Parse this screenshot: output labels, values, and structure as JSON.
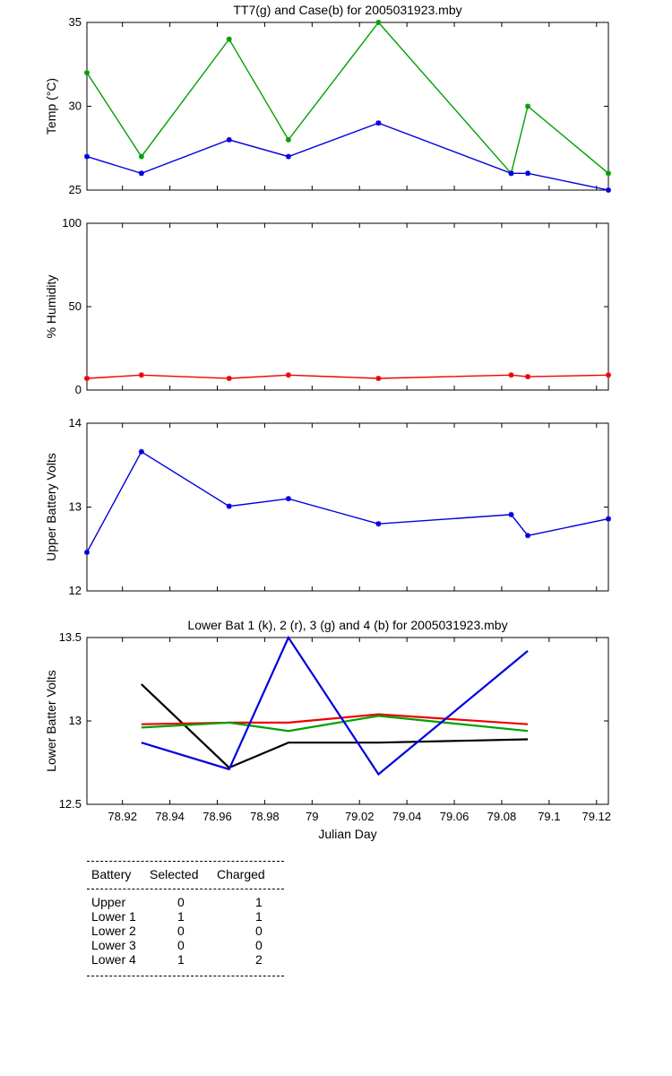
{
  "colors": {
    "green": "#00a000",
    "blue": "#0000dd",
    "red": "#ee0000",
    "black": "#000000"
  },
  "chart_data": [
    {
      "type": "line",
      "title": "TT7(g) and Case(b) for 2005031923.mby",
      "xlabel": "",
      "ylabel": "Temp  (°C)",
      "xlim": [
        78.905,
        79.125
      ],
      "ylim": [
        25,
        35
      ],
      "yticks": [
        "25",
        "30",
        "35"
      ],
      "x": [
        78.905,
        78.928,
        78.965,
        78.99,
        79.028,
        79.084,
        79.091,
        79.125
      ],
      "series": [
        {
          "color": "green",
          "values": [
            32,
            27,
            34,
            28,
            35,
            26,
            30,
            26
          ]
        },
        {
          "color": "blue",
          "values": [
            27,
            26,
            28,
            27,
            29,
            26,
            26,
            25
          ]
        }
      ],
      "markers": true,
      "grid": false
    },
    {
      "type": "line",
      "title": "",
      "xlabel": "",
      "ylabel": "% Humidity",
      "xlim": [
        78.905,
        79.125
      ],
      "ylim": [
        0,
        100
      ],
      "yticks": [
        "0",
        "50",
        "100"
      ],
      "x": [
        78.905,
        78.928,
        78.965,
        78.99,
        79.028,
        79.084,
        79.091,
        79.125
      ],
      "series": [
        {
          "color": "red",
          "values": [
            7,
            9,
            7,
            9,
            7,
            9,
            8,
            9
          ]
        }
      ],
      "markers": true,
      "grid": false
    },
    {
      "type": "line",
      "title": "",
      "xlabel": "",
      "ylabel": "Upper Battery Volts",
      "xlim": [
        78.905,
        79.125
      ],
      "ylim": [
        12,
        14
      ],
      "yticks": [
        "12",
        "13",
        "14"
      ],
      "x": [
        78.905,
        78.928,
        78.965,
        78.99,
        79.028,
        79.084,
        79.091,
        79.125
      ],
      "series": [
        {
          "color": "blue",
          "values": [
            12.46,
            13.66,
            13.01,
            13.1,
            12.8,
            12.91,
            12.66,
            12.86
          ]
        }
      ],
      "markers": true,
      "grid": false
    },
    {
      "type": "line",
      "title": "Lower Bat 1 (k), 2 (r), 3 (g) and 4 (b) for 2005031923.mby",
      "xlabel": "Julian Day",
      "ylabel": "Lower Batter Volts",
      "xlim": [
        78.905,
        79.125
      ],
      "ylim": [
        12.5,
        13.5
      ],
      "yticks": [
        "12.5",
        "13",
        "13.5"
      ],
      "xticks": [
        "78.92",
        "78.94",
        "78.96",
        "78.98",
        "79",
        "79.02",
        "79.04",
        "79.06",
        "79.08",
        "79.1",
        "79.12"
      ],
      "x": [
        78.928,
        78.965,
        78.99,
        79.028,
        79.091
      ],
      "series": [
        {
          "color": "black",
          "values": [
            13.22,
            12.72,
            12.87,
            12.87,
            12.89
          ]
        },
        {
          "color": "red",
          "values": [
            12.98,
            12.99,
            12.99,
            13.04,
            12.98
          ]
        },
        {
          "color": "green",
          "values": [
            12.96,
            12.99,
            12.94,
            13.03,
            12.94
          ]
        },
        {
          "color": "blue",
          "values": [
            12.87,
            12.71,
            13.5,
            12.68,
            13.42
          ]
        }
      ],
      "markers": false,
      "grid": false
    }
  ],
  "battery_table": {
    "headers": [
      "Battery",
      "Selected",
      "Charged"
    ],
    "rows": [
      {
        "name": "Upper",
        "selected": "0",
        "charged": "1"
      },
      {
        "name": "Lower 1",
        "selected": "1",
        "charged": "1"
      },
      {
        "name": "Lower 2",
        "selected": "0",
        "charged": "0"
      },
      {
        "name": "Lower 3",
        "selected": "0",
        "charged": "0"
      },
      {
        "name": "Lower 4",
        "selected": "1",
        "charged": "2"
      }
    ]
  }
}
